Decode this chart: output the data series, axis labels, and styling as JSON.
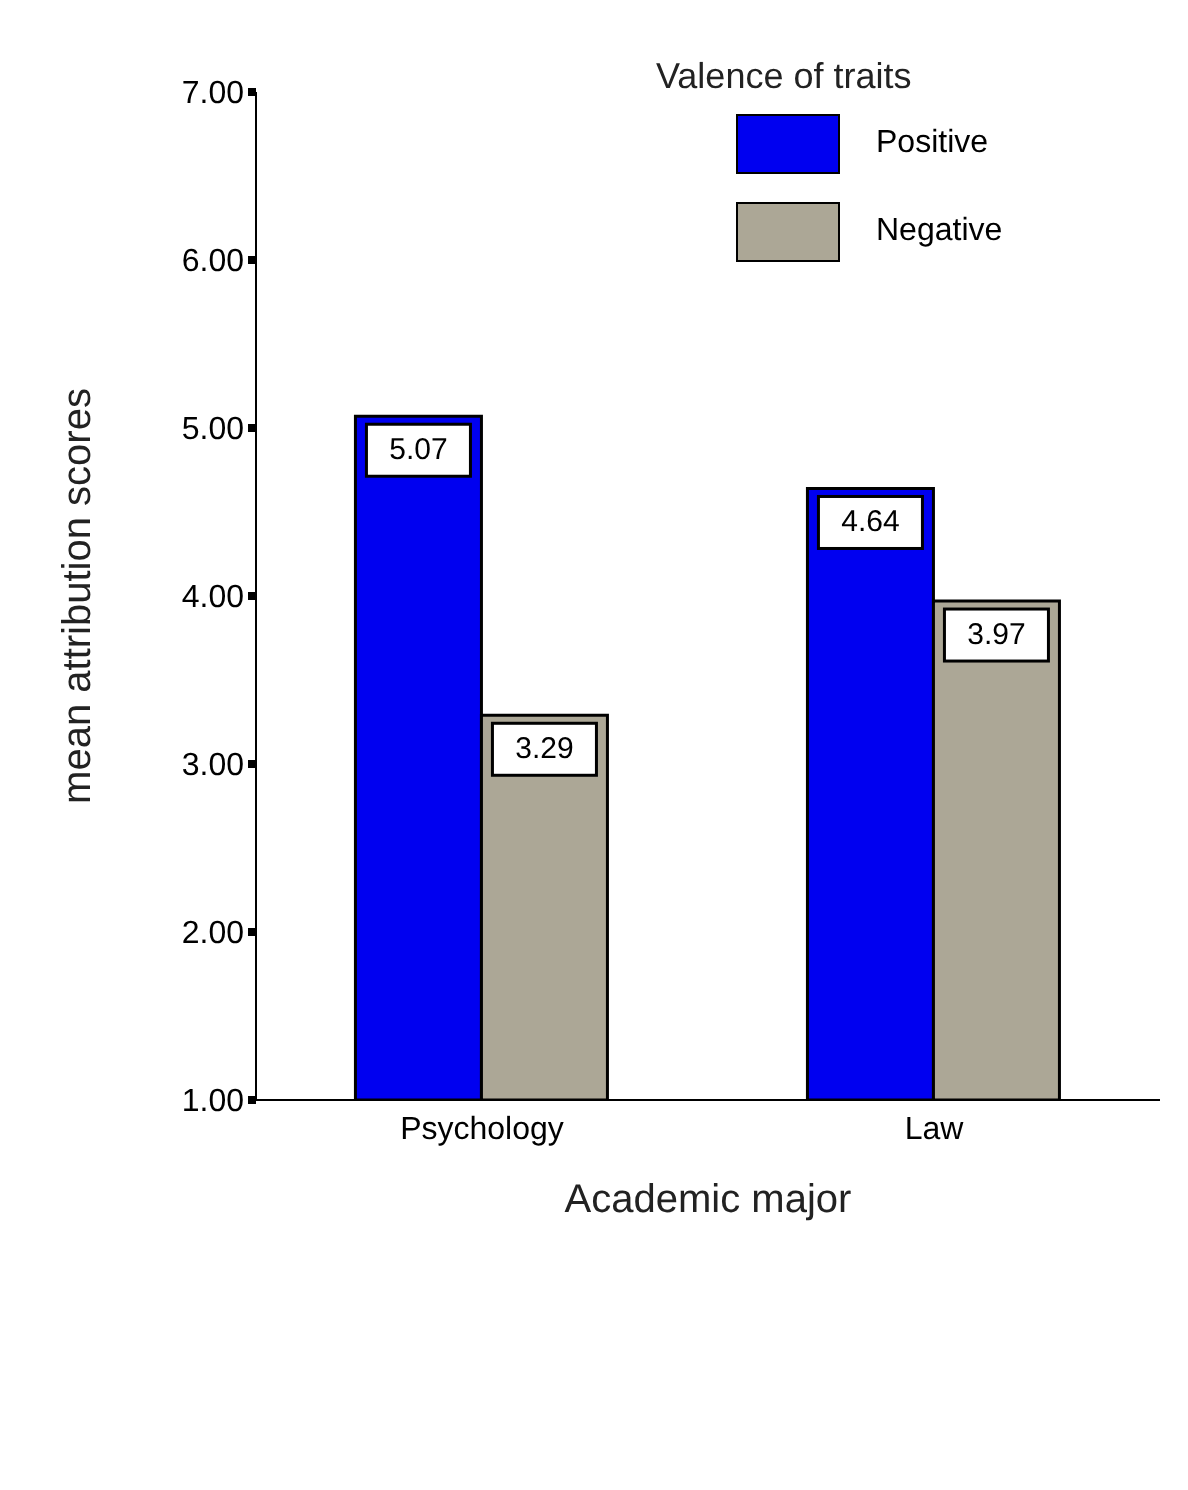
{
  "chart_data": {
    "type": "bar",
    "xlabel": "Academic major",
    "ylabel": "mean attribution scores",
    "legend_title": "Valence of traits",
    "categories": [
      "Psychology",
      "Law"
    ],
    "series": [
      {
        "name": "Positive",
        "color": "#0000f0",
        "values": [
          5.07,
          4.64
        ]
      },
      {
        "name": "Negative",
        "color": "#aca796",
        "values": [
          3.29,
          3.97
        ]
      }
    ],
    "ylim": [
      1,
      7
    ],
    "yticks": [
      {
        "value": 1,
        "label": "1.00"
      },
      {
        "value": 2,
        "label": "2.00"
      },
      {
        "value": 3,
        "label": "3.00"
      },
      {
        "value": 4,
        "label": "4.00"
      },
      {
        "value": 5,
        "label": "5.00"
      },
      {
        "value": 6,
        "label": "6.00"
      },
      {
        "value": 7,
        "label": "7.00"
      }
    ],
    "data_labels": true,
    "legend": "top right",
    "grid": false
  }
}
